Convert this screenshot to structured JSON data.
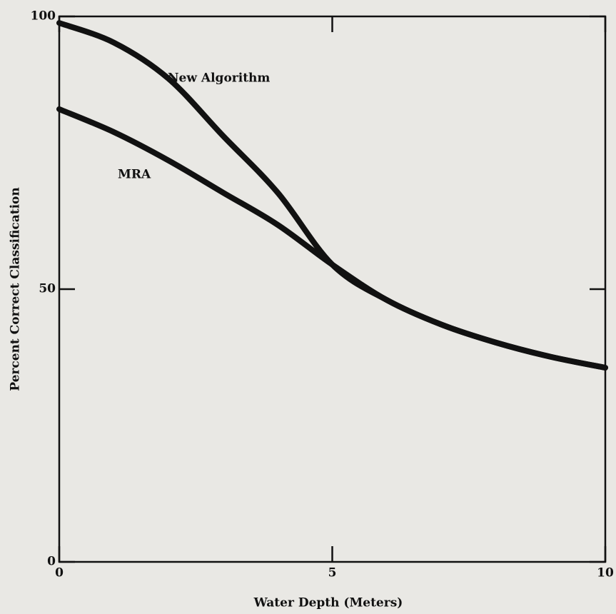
{
  "chart_data": {
    "type": "line",
    "xlabel": "Water Depth (Meters)",
    "ylabel": "Percent Correct Classification",
    "x": [
      0,
      1,
      2,
      3,
      4,
      5,
      6,
      7,
      8,
      9,
      10
    ],
    "series": [
      {
        "name": "New Algorithm",
        "color": "#111111",
        "values": [
          98.8,
          95.2,
          88.6,
          78.1,
          67.7,
          54.5,
          48,
          43.5,
          40.2,
          37.6,
          35.6
        ]
      },
      {
        "name": "MRA",
        "color": "#111111",
        "values": [
          83,
          78.8,
          73.6,
          67.7,
          61.8,
          54.5,
          48,
          43.5,
          40.2,
          37.6,
          35.6
        ]
      }
    ],
    "xlim": [
      0,
      10
    ],
    "xticks": [
      0,
      5,
      10
    ],
    "ylim": [
      0,
      100
    ],
    "yticks": [
      0,
      50,
      100
    ],
    "grid": false
  }
}
